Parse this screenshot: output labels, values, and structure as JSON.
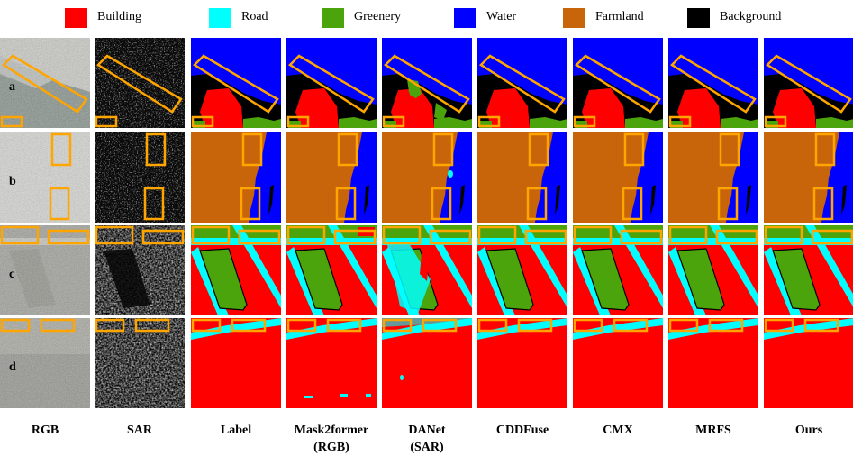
{
  "legend": [
    {
      "label": "Building",
      "color": "#ff0000"
    },
    {
      "label": "Road",
      "color": "#00ffff"
    },
    {
      "label": "Greenery",
      "color": "#4ca40c"
    },
    {
      "label": "Water",
      "color": "#0000ff"
    },
    {
      "label": "Farmland",
      "color": "#c8640a"
    },
    {
      "label": "Background",
      "color": "#000000"
    }
  ],
  "columns": [
    {
      "line1": "RGB",
      "line2": ""
    },
    {
      "line1": "SAR",
      "line2": ""
    },
    {
      "line1": "Label",
      "line2": ""
    },
    {
      "line1": "Mask2former",
      "line2": "(RGB)"
    },
    {
      "line1": "DANet",
      "line2": "(SAR)"
    },
    {
      "line1": "CDDFuse",
      "line2": ""
    },
    {
      "line1": "CMX",
      "line2": ""
    },
    {
      "line1": "MRFS",
      "line2": ""
    },
    {
      "line1": "Ours",
      "line2": ""
    }
  ],
  "rows": [
    {
      "id": "a"
    },
    {
      "id": "b"
    },
    {
      "id": "c"
    },
    {
      "id": "d"
    }
  ],
  "colors": {
    "highlight_box": "#ffa500",
    "building": "#ff0000",
    "road": "#00ffff",
    "greenery": "#4ca40c",
    "water": "#0000ff",
    "farmland": "#c8640a",
    "background": "#000000"
  }
}
